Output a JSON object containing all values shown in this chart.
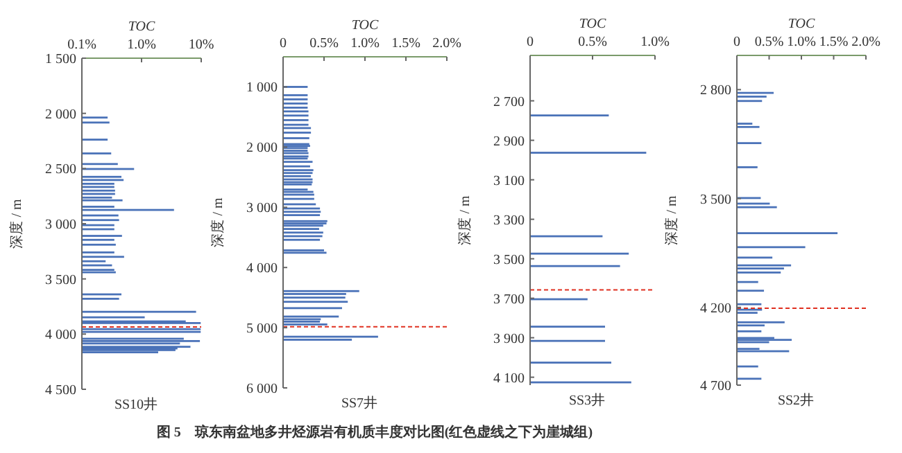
{
  "chart_data": [
    {
      "type": "bar",
      "orientation": "horizontal",
      "title": "SS10井",
      "xlabel": "TOC",
      "ylabel": "深度 / m",
      "log": "x",
      "color": "#4a72b8",
      "xlim": [
        0.1,
        10
      ],
      "xticks": [
        {
          "value": 0.1,
          "label": "0.1%"
        },
        {
          "value": 1,
          "label": "1.0%"
        },
        {
          "value": 10,
          "label": "10%"
        }
      ],
      "ylim": [
        4500,
        1500
      ],
      "yticks": [
        {
          "value": 1500,
          "label": "1 500"
        },
        {
          "value": 2000,
          "label": "2 000"
        },
        {
          "value": 2500,
          "label": "2 500"
        },
        {
          "value": 3000,
          "label": "3 000"
        },
        {
          "value": 3500,
          "label": "3 500"
        },
        {
          "value": 4000,
          "label": "4 000"
        },
        {
          "value": 4500,
          "label": "4 500"
        }
      ],
      "x": [
        2038,
        2083,
        2238,
        2363,
        2459,
        2504,
        2575,
        2604,
        2638,
        2667,
        2700,
        2730,
        2763,
        2788,
        2846,
        2875,
        2925,
        2967,
        3013,
        3050,
        3110,
        3146,
        3190,
        3260,
        3300,
        3340,
        3377,
        3418,
        3440,
        3640,
        3680,
        3798,
        3848,
        3885,
        3900,
        3955,
        3980,
        4042,
        4063,
        4085,
        4115,
        4130,
        4145,
        4165
      ],
      "values": [
        0.27,
        0.29,
        0.27,
        0.31,
        0.4,
        0.75,
        0.46,
        0.5,
        0.35,
        0.35,
        0.36,
        0.36,
        0.32,
        0.48,
        0.35,
        3.5,
        0.41,
        0.42,
        0.35,
        0.35,
        0.47,
        0.35,
        0.37,
        0.35,
        0.51,
        0.25,
        0.32,
        0.35,
        0.37,
        0.46,
        0.42,
        8.2,
        1.13,
        5.5,
        9.8,
        9.8,
        9.8,
        5.1,
        9.5,
        4.4,
        6.6,
        4.0,
        3.7,
        1.9
      ],
      "ref_lines": [
        {
          "axis": "y",
          "value": 3935,
          "color": "#e03020",
          "line_style": "dashed"
        }
      ],
      "annotations": [
        "图 5　琼东南盆地多井烃源岩有机质丰度对比图(红色虚线之下为崖城组)"
      ]
    },
    {
      "type": "bar",
      "orientation": "horizontal",
      "title": "SS7井",
      "xlabel": "TOC",
      "ylabel": "深度 / m",
      "color": "#4a72b8",
      "xlim": [
        0,
        2
      ],
      "xticks": [
        {
          "value": 0,
          "label": "0"
        },
        {
          "value": 0.5,
          "label": "0.5%"
        },
        {
          "value": 1,
          "label": "1.0%"
        },
        {
          "value": 1.5,
          "label": "1.5%"
        },
        {
          "value": 2,
          "label": "2.0%"
        }
      ],
      "ylim": [
        6000,
        500
      ],
      "yticks": [
        {
          "value": 1000,
          "label": "1 000"
        },
        {
          "value": 2000,
          "label": "2 000"
        },
        {
          "value": 3000,
          "label": "3 000"
        },
        {
          "value": 4000,
          "label": "4 000"
        },
        {
          "value": 5000,
          "label": "5 000"
        },
        {
          "value": 6000,
          "label": "6 000"
        }
      ],
      "x": [
        1000,
        1138,
        1207,
        1276,
        1345,
        1407,
        1476,
        1552,
        1629,
        1684,
        1760,
        1852,
        1950,
        1980,
        2015,
        2060,
        2100,
        2155,
        2190,
        2245,
        2320,
        2383,
        2430,
        2483,
        2537,
        2583,
        2620,
        2705,
        2744,
        2790,
        2860,
        2950,
        3020,
        3075,
        3130,
        3230,
        3268,
        3305,
        3360,
        3420,
        3480,
        3540,
        3715,
        3755,
        4392,
        4440,
        4500,
        4570,
        4675,
        4815,
        4860,
        4900,
        4946,
        5150,
        5200
      ],
      "values": [
        0.3,
        0.3,
        0.3,
        0.3,
        0.3,
        0.31,
        0.31,
        0.31,
        0.31,
        0.34,
        0.34,
        0.32,
        0.32,
        0.33,
        0.3,
        0.3,
        0.31,
        0.31,
        0.3,
        0.36,
        0.33,
        0.37,
        0.36,
        0.34,
        0.36,
        0.36,
        0.35,
        0.3,
        0.37,
        0.38,
        0.38,
        0.4,
        0.45,
        0.46,
        0.45,
        0.54,
        0.53,
        0.49,
        0.44,
        0.49,
        0.48,
        0.45,
        0.5,
        0.53,
        0.93,
        0.77,
        0.76,
        0.79,
        0.72,
        0.68,
        0.46,
        0.45,
        0.54,
        1.16,
        0.84
      ],
      "ref_lines": [
        {
          "axis": "y",
          "value": 4985,
          "color": "#e03020",
          "line_style": "dashed"
        }
      ]
    },
    {
      "type": "bar",
      "orientation": "horizontal",
      "title": "SS3井",
      "xlabel": "TOC",
      "ylabel": "深度 / m",
      "color": "#4a72b8",
      "xlim": [
        0,
        1
      ],
      "xticks": [
        {
          "value": 0,
          "label": "0"
        },
        {
          "value": 0.5,
          "label": "0.5%"
        },
        {
          "value": 1,
          "label": "1.0%"
        }
      ],
      "ylim": [
        4140,
        2470
      ],
      "yticks": [
        {
          "value": 2700,
          "label": "2 700"
        },
        {
          "value": 2900,
          "label": "2 900"
        },
        {
          "value": 3100,
          "label": "3 100"
        },
        {
          "value": 3300,
          "label": "3 300"
        },
        {
          "value": 3500,
          "label": "3 500"
        },
        {
          "value": 3700,
          "label": "3 700"
        },
        {
          "value": 3900,
          "label": "3 900"
        },
        {
          "value": 4100,
          "label": "4 100"
        }
      ],
      "x": [
        2774,
        2963,
        3386,
        3474,
        3537,
        3705,
        3844,
        3916,
        4026,
        4126
      ],
      "values": [
        0.63,
        0.93,
        0.58,
        0.79,
        0.72,
        0.46,
        0.6,
        0.6,
        0.65,
        0.81
      ],
      "ref_lines": [
        {
          "axis": "y",
          "value": 3658,
          "color": "#e03020",
          "line_style": "dashed"
        }
      ]
    },
    {
      "type": "bar",
      "orientation": "horizontal",
      "title": "SS2井",
      "xlabel": "TOC",
      "ylabel": "深度 / m",
      "color": "#4a72b8",
      "xlim": [
        0,
        2
      ],
      "xticks": [
        {
          "value": 0,
          "label": "0"
        },
        {
          "value": 0.5,
          "label": "0.5%"
        },
        {
          "value": 1,
          "label": "1.0%"
        },
        {
          "value": 1.5,
          "label": "1.5%"
        },
        {
          "value": 2,
          "label": "2.0%"
        }
      ],
      "ylim": [
        4700,
        2580
      ],
      "yticks": [
        {
          "value": 2800,
          "label": "2 800"
        },
        {
          "value": 3500,
          "label": "3 500"
        },
        {
          "value": 4200,
          "label": "4 200"
        },
        {
          "value": 4700,
          "label": "4 700"
        }
      ],
      "x": [
        2821,
        2845,
        2873,
        3019,
        3040,
        3144,
        3299,
        3497,
        3533,
        3556,
        3723,
        3813,
        3880,
        3930,
        3950,
        3976,
        4037,
        4093,
        4180,
        4215,
        4235,
        4296,
        4316,
        4354,
        4397,
        4409,
        4424,
        4467,
        4482,
        4580,
        4659
      ],
      "values": [
        0.57,
        0.46,
        0.39,
        0.24,
        0.35,
        0.38,
        0.32,
        0.37,
        0.51,
        0.62,
        1.56,
        1.06,
        0.55,
        0.84,
        0.73,
        0.68,
        0.33,
        0.42,
        0.38,
        0.39,
        0.32,
        0.74,
        0.43,
        0.38,
        0.58,
        0.85,
        0.5,
        0.35,
        0.81,
        0.33,
        0.38
      ],
      "ref_lines": [
        {
          "axis": "y",
          "value": 4206,
          "color": "#e03020",
          "line_style": "dashed"
        }
      ]
    }
  ]
}
